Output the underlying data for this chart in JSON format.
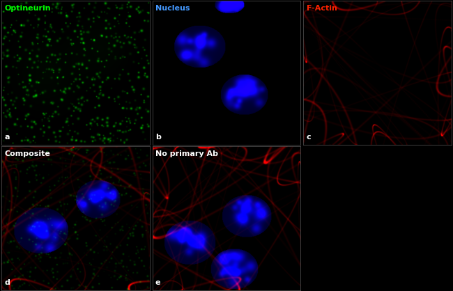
{
  "figure_width": 6.5,
  "figure_height": 4.18,
  "dpi": 100,
  "background_color": "#000000",
  "border_color": "#555555",
  "panels": [
    {
      "id": "a",
      "label": "a",
      "title": "Optineurin",
      "title_color": "#00ff00"
    },
    {
      "id": "b",
      "label": "b",
      "title": "Nucleus",
      "title_color": "#4499ff"
    },
    {
      "id": "c",
      "label": "c",
      "title": "F-Actin",
      "title_color": "#ff2200"
    },
    {
      "id": "d",
      "label": "d",
      "title": "Composite",
      "title_color": "#ffffff"
    },
    {
      "id": "e",
      "label": "e",
      "title": "No primary Ab",
      "title_color": "#ffffff"
    }
  ],
  "label_fontsize": 8,
  "title_fontsize": 8,
  "label_color": "#ffffff"
}
